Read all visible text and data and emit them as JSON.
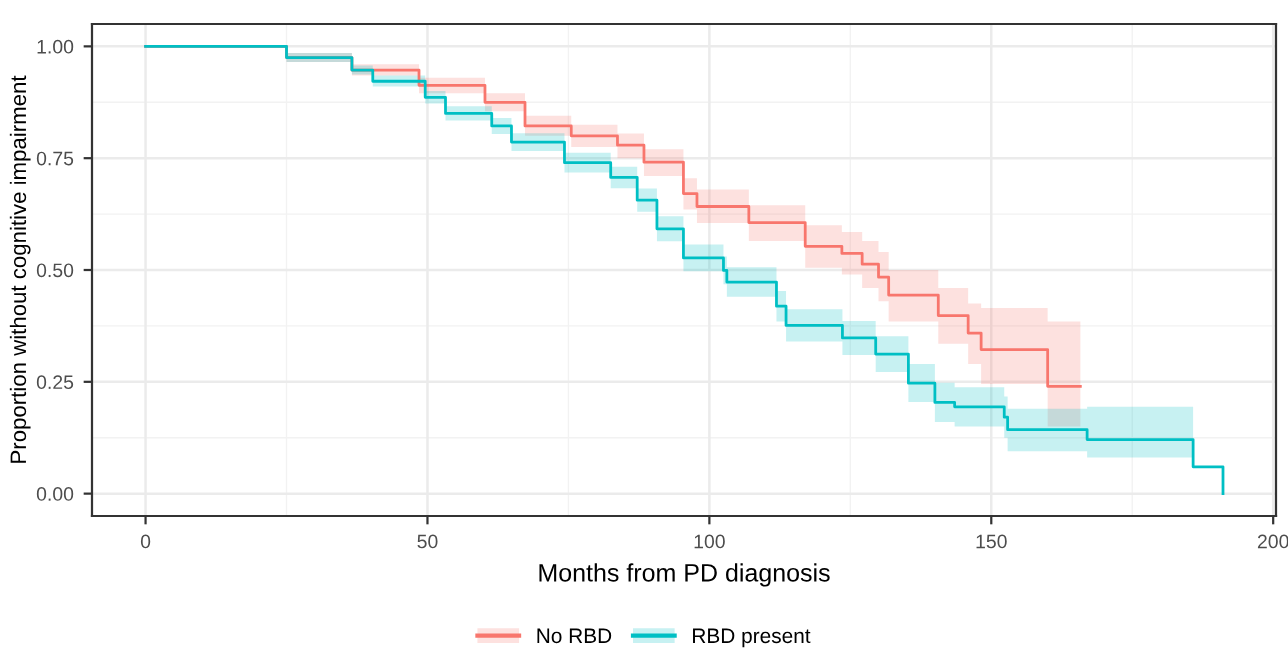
{
  "chart_data": {
    "type": "step",
    "xlabel": "Months from PD diagnosis",
    "ylabel": "Proportion without cognitive impairment",
    "xlim": [
      -9.5,
      200.5
    ],
    "ylim": [
      -0.05,
      1.05
    ],
    "xticks": [
      0,
      50,
      100,
      150,
      200
    ],
    "yticks": [
      {
        "value": 0,
        "label": "0.00"
      },
      {
        "value": 0.25,
        "label": "0.25"
      },
      {
        "value": 0.5,
        "label": "0.50"
      },
      {
        "value": 0.75,
        "label": "0.75"
      },
      {
        "value": 1,
        "label": "1.00"
      }
    ],
    "grid": true,
    "legend": "bottom",
    "series": [
      {
        "name": "No RBD",
        "color": "#f8766d",
        "x": [
          0,
          25,
          36.6,
          48.5,
          60.2,
          67.3,
          75.5,
          83.7,
          88.4,
          95.4,
          97.8,
          107,
          117,
          123.5,
          127.1,
          130,
          131.8,
          140.6,
          145.9,
          148.2,
          160,
          165.8
        ],
        "values": [
          1.0,
          0.975,
          0.947,
          0.913,
          0.875,
          0.822,
          0.8,
          0.779,
          0.741,
          0.671,
          0.642,
          0.606,
          0.553,
          0.537,
          0.513,
          0.484,
          0.444,
          0.398,
          0.359,
          0.322,
          0.24,
          0.24
        ],
        "lower": [
          1.0,
          0.965,
          0.935,
          0.895,
          0.855,
          0.8,
          0.775,
          0.75,
          0.71,
          0.635,
          0.605,
          0.565,
          0.505,
          0.49,
          0.46,
          0.43,
          0.385,
          0.335,
          0.29,
          0.245,
          0.15,
          0.15
        ],
        "upper": [
          1.0,
          0.985,
          0.96,
          0.93,
          0.895,
          0.845,
          0.825,
          0.805,
          0.77,
          0.705,
          0.68,
          0.645,
          0.6,
          0.585,
          0.565,
          0.54,
          0.5,
          0.46,
          0.425,
          0.415,
          0.385,
          0.385
        ]
      },
      {
        "name": "RBD present",
        "color": "#00bfc4",
        "x": [
          0,
          25,
          36.6,
          40.3,
          49.6,
          53.2,
          61.4,
          64.9,
          74.3,
          82.5,
          87.2,
          90.7,
          95.4,
          102.5,
          103.1,
          111.9,
          113.6,
          123.6,
          129.5,
          135.3,
          140,
          143.5,
          152.3,
          152.9,
          167,
          185.8,
          191.1
        ],
        "values": [
          1.0,
          0.975,
          0.947,
          0.922,
          0.886,
          0.85,
          0.822,
          0.786,
          0.74,
          0.707,
          0.656,
          0.592,
          0.527,
          0.499,
          0.473,
          0.419,
          0.376,
          0.348,
          0.312,
          0.247,
          0.204,
          0.194,
          0.171,
          0.143,
          0.121,
          0.06,
          0.0
        ],
        "lower": [
          1.0,
          0.965,
          0.937,
          0.91,
          0.872,
          0.834,
          0.804,
          0.766,
          0.718,
          0.683,
          0.63,
          0.564,
          0.497,
          0.468,
          0.44,
          0.385,
          0.34,
          0.31,
          0.272,
          0.205,
          0.16,
          0.15,
          0.125,
          0.095,
          0.081,
          0.06,
          0.0
        ],
        "upper": [
          1.0,
          0.985,
          0.957,
          0.935,
          0.9,
          0.866,
          0.84,
          0.806,
          0.762,
          0.731,
          0.682,
          0.62,
          0.557,
          0.53,
          0.506,
          0.453,
          0.412,
          0.386,
          0.352,
          0.29,
          0.248,
          0.238,
          0.217,
          0.19,
          0.194,
          0.06,
          0.0
        ]
      }
    ]
  }
}
